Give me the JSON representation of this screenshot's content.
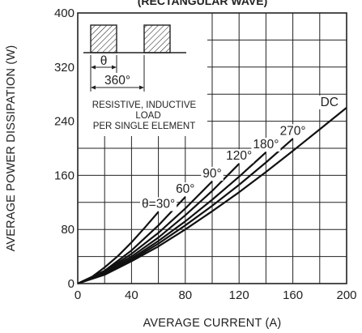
{
  "chart_data": {
    "type": "line",
    "title": "(RECTANGULAR WAVE)",
    "xlabel": "AVERAGE CURRENT (A)",
    "ylabel": "AVERAGE POWER DISSIPATION (W)",
    "xlim": [
      0,
      200
    ],
    "ylim": [
      0,
      400
    ],
    "x_ticks": [
      "0",
      "40",
      "80",
      "120",
      "160",
      "200"
    ],
    "y_ticks": [
      "0",
      "80",
      "160",
      "240",
      "320",
      "400"
    ],
    "x_tick_values": [
      0,
      40,
      80,
      120,
      160,
      200
    ],
    "y_tick_values": [
      0,
      80,
      160,
      240,
      320,
      400
    ],
    "x_minor_step": 20,
    "y_minor_step": 40,
    "grid": true,
    "series": [
      {
        "name": "θ=30°",
        "x": [
          0,
          10,
          20,
          30,
          40,
          50,
          60
        ],
        "y": [
          0,
          9,
          24,
          41,
          61,
          83,
          106
        ]
      },
      {
        "name": "60°",
        "x": [
          0,
          20,
          40,
          60,
          80
        ],
        "y": [
          0,
          19,
          49,
          86,
          128
        ]
      },
      {
        "name": "90°",
        "x": [
          0,
          20,
          40,
          60,
          80,
          100
        ],
        "y": [
          0,
          18,
          44,
          75,
          111,
          151
        ]
      },
      {
        "name": "120°",
        "x": [
          0,
          20,
          40,
          60,
          80,
          100,
          120
        ],
        "y": [
          0,
          17,
          40,
          68,
          101,
          137,
          177
        ]
      },
      {
        "name": "180°",
        "x": [
          0,
          20,
          40,
          60,
          80,
          100,
          120,
          140
        ],
        "y": [
          0,
          15,
          37,
          63,
          92,
          124,
          158,
          194
        ]
      },
      {
        "name": "270°",
        "x": [
          0,
          20,
          40,
          60,
          80,
          100,
          120,
          140,
          160
        ],
        "y": [
          0,
          14,
          35,
          59,
          86,
          115,
          146,
          179,
          214
        ]
      },
      {
        "name": "DC",
        "x": [
          0,
          20,
          40,
          60,
          80,
          100,
          120,
          140,
          160,
          180,
          200
        ],
        "y": [
          0,
          13,
          33,
          55,
          80,
          107,
          135,
          165,
          196,
          228,
          260
        ]
      }
    ],
    "inset": {
      "theta_label": "θ",
      "period_label": "360°",
      "note_lines": [
        "RESISTIVE, INDUCTIVE",
        "LOAD",
        "PER SINGLE ELEMENT"
      ]
    }
  }
}
